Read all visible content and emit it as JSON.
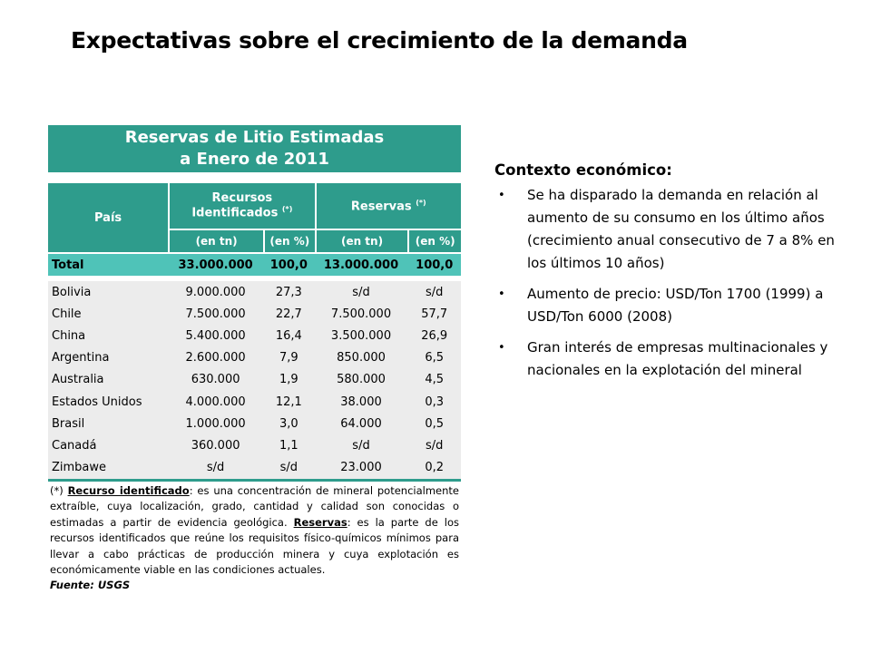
{
  "slide": {
    "title": "Expectativas sobre el crecimiento de la demanda"
  },
  "table": {
    "banner_line1": "Reservas de Litio Estimadas",
    "banner_line2": "a Enero de 2011",
    "headers": {
      "pais": "País",
      "recursos": "Recursos Identificados",
      "reservas": "Reservas",
      "asterisk": "(*)",
      "en_tn": "(en tn)",
      "en_pct": "(en %)"
    },
    "total": {
      "country": "Total",
      "recursos_tn": "33.000.000",
      "recursos_pct": "100,0",
      "reservas_tn": "13.000.000",
      "reservas_pct": "100,0"
    },
    "rows": [
      {
        "country": "Bolivia",
        "recursos_tn": "9.000.000",
        "recursos_pct": "27,3",
        "reservas_tn": "s/d",
        "reservas_pct": "s/d"
      },
      {
        "country": "Chile",
        "recursos_tn": "7.500.000",
        "recursos_pct": "22,7",
        "reservas_tn": "7.500.000",
        "reservas_pct": "57,7"
      },
      {
        "country": "China",
        "recursos_tn": "5.400.000",
        "recursos_pct": "16,4",
        "reservas_tn": "3.500.000",
        "reservas_pct": "26,9"
      },
      {
        "country": "Argentina",
        "recursos_tn": "2.600.000",
        "recursos_pct": "7,9",
        "reservas_tn": "850.000",
        "reservas_pct": "6,5"
      },
      {
        "country": "Australia",
        "recursos_tn": "630.000",
        "recursos_pct": "1,9",
        "reservas_tn": "580.000",
        "reservas_pct": "4,5"
      },
      {
        "country": "Estados Unidos",
        "recursos_tn": "4.000.000",
        "recursos_pct": "12,1",
        "reservas_tn": "38.000",
        "reservas_pct": "0,3"
      },
      {
        "country": "Brasil",
        "recursos_tn": "1.000.000",
        "recursos_pct": "3,0",
        "reservas_tn": "64.000",
        "reservas_pct": "0,5"
      },
      {
        "country": "Canadá",
        "recursos_tn": "360.000",
        "recursos_pct": "1,1",
        "reservas_tn": "s/d",
        "reservas_pct": "s/d"
      },
      {
        "country": "Zimbawe",
        "recursos_tn": "s/d",
        "recursos_pct": "s/d",
        "reservas_tn": "23.000",
        "reservas_pct": "0,2"
      }
    ],
    "note": {
      "prefix": "(*) ",
      "term1": "Recurso identificado",
      "text1": ": es una concentración de mineral potencialmente extraíble, cuya localización, grado, cantidad y calidad son conocidas o estimadas a partir de evidencia geológica. ",
      "term2": "Reservas",
      "text2": ": es la parte de los recursos identificados que reúne los requisitos físico-químicos mínimos para llevar a cabo prácticas de producción minera y cuya explotación es económicamente viable en las condiciones actuales."
    },
    "source": "Fuente: USGS"
  },
  "context": {
    "title": "Contexto económico:",
    "bullet_char": "•",
    "bullets": [
      "Se ha disparado la demanda en relación al aumento de su consumo en los último años (crecimiento anual consecutivo de 7 a 8% en los últimos 10 años)",
      "Aumento de precio: USD/Ton 1700 (1999) a USD/Ton 6000 (2008)",
      "Gran interés de empresas multinacionales y nacionales en la explotación del mineral"
    ]
  }
}
